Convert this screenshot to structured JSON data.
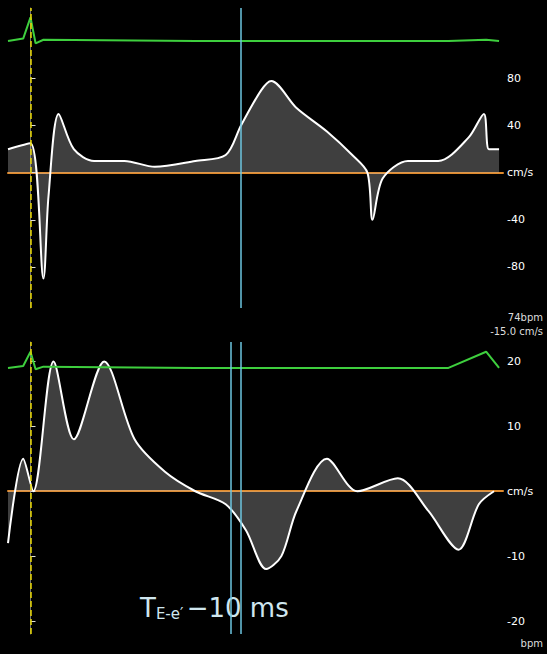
{
  "chart_data": [
    {
      "type": "line",
      "x": [
        -40,
        0,
        23,
        32,
        50,
        77,
        113,
        167,
        221,
        293,
        347,
        374,
        410,
        428,
        473,
        527,
        572,
        599,
        608,
        626,
        671,
        725,
        779,
        806,
        815,
        833
      ],
      "values": [
        20,
        25,
        -90,
        -20,
        50,
        20,
        10,
        10,
        5,
        10,
        15,
        40,
        70,
        78,
        55,
        35,
        15,
        0,
        -40,
        -5,
        10,
        10,
        30,
        50,
        20,
        20
      ],
      "ecg_x": [
        -40,
        -13,
        0,
        9,
        23,
        293,
        473,
        743,
        810,
        833
      ],
      "ecg_values": [
        112,
        114,
        132,
        110,
        113,
        112,
        112,
        112,
        113,
        112
      ],
      "xlim": [
        -40,
        840
      ],
      "ylim": [
        -115,
        140
      ],
      "yticks": [
        -80,
        -40,
        {
          "value": 0,
          "label": "cm/s"
        },
        40,
        80
      ],
      "r_wave": [
        0
      ],
      "vlines": [
        374
      ],
      "annotations": [
        "74bpm"
      ],
      "tick_labels": "y",
      "grid": false,
      "color": "#ffffff"
    },
    {
      "type": "line",
      "x": [
        -40,
        -13,
        5,
        41,
        77,
        131,
        185,
        239,
        293,
        347,
        383,
        419,
        446,
        473,
        527,
        581,
        653,
        707,
        761,
        797,
        824
      ],
      "values": [
        -8,
        5,
        0,
        20,
        8,
        20,
        8,
        3,
        0,
        -2,
        -6,
        -12,
        -10,
        -3,
        5,
        0,
        2,
        -3,
        -9,
        -2,
        0
      ],
      "ecg_x": [
        -40,
        -13,
        0,
        9,
        23,
        293,
        473,
        743,
        810,
        833
      ],
      "ecg_values": [
        19,
        19.3,
        21.5,
        18.8,
        19.2,
        19,
        19,
        19,
        21.5,
        19
      ],
      "xlim": [
        -40,
        840
      ],
      "ylim": [
        -22,
        23
      ],
      "yticks": [
        -20,
        -10,
        {
          "value": 0,
          "label": "cm/s"
        },
        10,
        20
      ],
      "r_wave": [
        0
      ],
      "vlines": [
        356,
        374
      ],
      "annotations": [
        "-15.0 cm/s",
        "bpm"
      ],
      "annotation": {
        "main": "T",
        "subscript": "E-e′",
        "text": "−10 ms"
      },
      "tick_labels": "y",
      "grid": false,
      "color": "#ffffff"
    }
  ]
}
